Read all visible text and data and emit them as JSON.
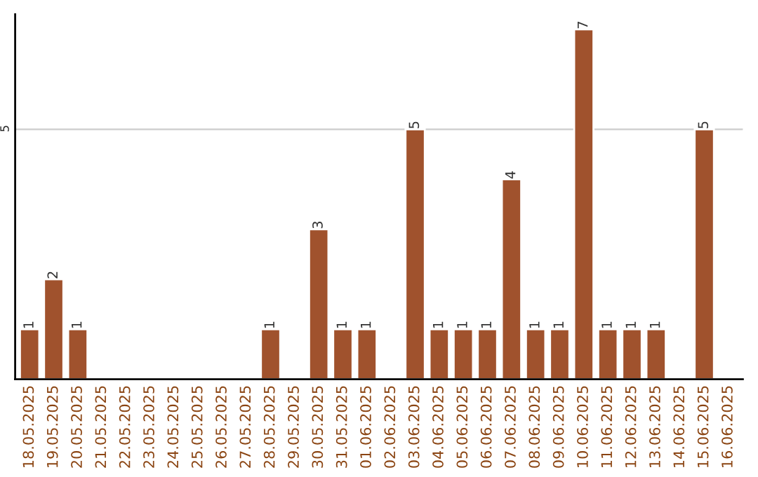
{
  "chart_data": {
    "type": "bar",
    "categories": [
      "18.05.2025",
      "19.05.2025",
      "20.05.2025",
      "21.05.2025",
      "22.05.2025",
      "23.05.2025",
      "24.05.2025",
      "25.05.2025",
      "26.05.2025",
      "27.05.2025",
      "28.05.2025",
      "29.05.2025",
      "30.05.2025",
      "31.05.2025",
      "01.06.2025",
      "02.06.2025",
      "03.06.2025",
      "04.06.2025",
      "05.06.2025",
      "06.06.2025",
      "07.06.2025",
      "08.06.2025",
      "09.06.2025",
      "10.06.2025",
      "11.06.2025",
      "12.06.2025",
      "13.06.2025",
      "14.06.2025",
      "15.06.2025",
      "16.06.2025"
    ],
    "values": [
      1,
      2,
      1,
      null,
      null,
      null,
      null,
      null,
      null,
      null,
      1,
      null,
      3,
      1,
      1,
      null,
      5,
      1,
      1,
      1,
      4,
      1,
      1,
      7,
      1,
      1,
      1,
      null,
      5,
      null
    ],
    "value_labels": [
      "1",
      "2",
      "1",
      null,
      null,
      null,
      null,
      null,
      null,
      null,
      "1",
      null,
      "3",
      "1",
      "1",
      null,
      "5",
      "1",
      "1",
      "1",
      "4",
      "1",
      "1",
      "7",
      "1",
      "1",
      "1",
      null,
      "5",
      null
    ],
    "color": "#a0522d",
    "ylim": [
      0,
      7.3
    ],
    "yticks": [
      5
    ],
    "grid": "y"
  }
}
